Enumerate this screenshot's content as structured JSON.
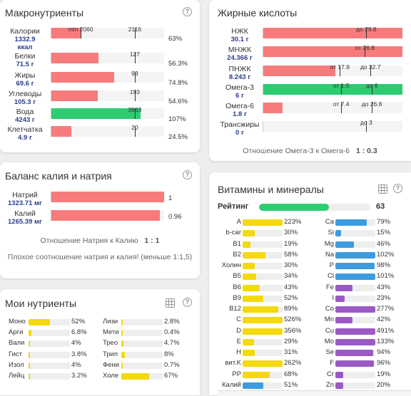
{
  "macro": {
    "title": "Макронутриенты",
    "rows": [
      {
        "name": "Калории",
        "value": "1332.9 ккал",
        "fill": 0.26,
        "color": "#f77b7b",
        "marks": [
          {
            "t": "min 2060",
            "p": 0.26
          },
          {
            "t": "2116",
            "p": 0.74
          }
        ],
        "pct": "63%"
      },
      {
        "name": "Белки",
        "value": "71.5 г",
        "fill": 0.42,
        "color": "#f77b7b",
        "marks": [
          {
            "t": "127",
            "p": 0.74
          }
        ],
        "pct": "56.3%"
      },
      {
        "name": "Жиры",
        "value": "69.6 г",
        "fill": 0.56,
        "color": "#f77b7b",
        "marks": [
          {
            "t": "93",
            "p": 0.74
          }
        ],
        "pct": "74.8%"
      },
      {
        "name": "Углеводы",
        "value": "105.3 г",
        "fill": 0.41,
        "color": "#f77b7b",
        "marks": [
          {
            "t": "193",
            "p": 0.74
          }
        ],
        "pct": "54.6%"
      },
      {
        "name": "Вода",
        "value": "4243 г",
        "fill": 0.79,
        "color": "#2ecc71",
        "marks": [
          {
            "t": "3963",
            "p": 0.74
          }
        ],
        "pct": "107%"
      },
      {
        "name": "Клетчатка",
        "value": "4.9 г",
        "fill": 0.18,
        "color": "#f77b7b",
        "marks": [
          {
            "t": "20",
            "p": 0.74
          }
        ],
        "pct": "24.5%"
      }
    ]
  },
  "fat": {
    "title": "Жирные кислоты",
    "rows": [
      {
        "name": "НЖК",
        "value": "30.1 г",
        "fill": 1.0,
        "color": "#f77b7b",
        "marks": [
          {
            "t": "до 29.8",
            "p": 0.74
          }
        ]
      },
      {
        "name": "МНЖК",
        "value": "24.366 г",
        "fill": 1.0,
        "color": "#f77b7b",
        "marks": [
          {
            "t": "от 26.8",
            "p": 0.73
          }
        ]
      },
      {
        "name": "ПНЖК",
        "value": "8.243 г",
        "fill": 0.52,
        "color": "#f77b7b",
        "marks": [
          {
            "t": "от 17.9",
            "p": 0.55
          },
          {
            "t": "до 32.7",
            "p": 0.77
          }
        ]
      },
      {
        "name": "Омега-3",
        "value": "6 г",
        "fill": 1.0,
        "color": "#2ecc71",
        "marks": [
          {
            "t": "от 1.5",
            "p": 0.56
          },
          {
            "t": "до 6",
            "p": 0.78
          }
        ]
      },
      {
        "name": "Омега-6",
        "value": "1.8 г",
        "fill": 0.14,
        "color": "#f77b7b",
        "marks": [
          {
            "t": "от 7.4",
            "p": 0.56
          },
          {
            "t": "до 26.8",
            "p": 0.78
          }
        ]
      },
      {
        "name": "Трансжиры",
        "value": "0 г",
        "fill": 0.0,
        "color": "#f77b7b",
        "marks": [
          {
            "t": "до 3",
            "p": 0.74
          }
        ]
      }
    ],
    "ratio_label": "Отношение Омега-3 к Омега-6",
    "ratio_value": "1 : 0.3"
  },
  "balance": {
    "title": "Баланс калия и натрия",
    "rows": [
      {
        "name": "Натрий",
        "value": "1323.71 мг",
        "fill": 1.0,
        "num": "1"
      },
      {
        "name": "Калий",
        "value": "1265.39 мг",
        "fill": 0.96,
        "num": "0.96"
      }
    ],
    "ratio_label": "Отношение Натрия к Калию",
    "ratio_value": "1 : 1",
    "warning": "Плохое соотношение натрия и калия! (меньше 1:1,5)"
  },
  "my": {
    "title": "Мои нутриенты",
    "left": [
      {
        "name": "Моно",
        "pct": "52%",
        "fill": 0.52
      },
      {
        "name": "Арги",
        "pct": "6.8%",
        "fill": 0.07
      },
      {
        "name": "Вали",
        "pct": "4%",
        "fill": 0.04
      },
      {
        "name": "Гист",
        "pct": "3.8%",
        "fill": 0.04
      },
      {
        "name": "Изол",
        "pct": "4%",
        "fill": 0.04
      },
      {
        "name": "Лейц",
        "pct": "3.2%",
        "fill": 0.03
      }
    ],
    "right": [
      {
        "name": "Лизи",
        "pct": "2.8%",
        "fill": 0.03
      },
      {
        "name": "Мети",
        "pct": "0.4%",
        "fill": 0.01
      },
      {
        "name": "Трео",
        "pct": "4.7%",
        "fill": 0.05
      },
      {
        "name": "Трип",
        "pct": "8%",
        "fill": 0.08
      },
      {
        "name": "Фени",
        "pct": "0.7%",
        "fill": 0.01
      },
      {
        "name": "Холе",
        "pct": "67%",
        "fill": 0.67
      }
    ]
  },
  "vit": {
    "title": "Витамины и минералы",
    "rating_label": "Рейтинг",
    "rating_value": "63",
    "rating_fill": 0.63,
    "left": [
      {
        "name": "A",
        "pct": "223%",
        "fill": 1.0
      },
      {
        "name": "b-car",
        "pct": "30%",
        "fill": 0.3
      },
      {
        "name": "B1",
        "pct": "19%",
        "fill": 0.19
      },
      {
        "name": "B2",
        "pct": "58%",
        "fill": 0.58
      },
      {
        "name": "Холин",
        "pct": "30%",
        "fill": 0.3
      },
      {
        "name": "B5",
        "pct": "34%",
        "fill": 0.34
      },
      {
        "name": "B6",
        "pct": "43%",
        "fill": 0.43
      },
      {
        "name": "B9",
        "pct": "52%",
        "fill": 0.52
      },
      {
        "name": "B12",
        "pct": "89%",
        "fill": 0.89
      },
      {
        "name": "C",
        "pct": "526%",
        "fill": 1.0
      },
      {
        "name": "D",
        "pct": "356%",
        "fill": 1.0
      },
      {
        "name": "E",
        "pct": "29%",
        "fill": 0.29
      },
      {
        "name": "H",
        "pct": "31%",
        "fill": 0.31
      },
      {
        "name": "вит.K",
        "pct": "262%",
        "fill": 1.0
      },
      {
        "name": "PP",
        "pct": "68%",
        "fill": 0.68
      },
      {
        "name": "Калий",
        "pct": "51%",
        "fill": 0.51
      }
    ],
    "right": [
      {
        "name": "Ca",
        "pct": "79%",
        "fill": 0.79
      },
      {
        "name": "Si",
        "pct": "15%",
        "fill": 0.15
      },
      {
        "name": "Mg",
        "pct": "46%",
        "fill": 0.46
      },
      {
        "name": "Na",
        "pct": "102%",
        "fill": 1.0
      },
      {
        "name": "P",
        "pct": "98%",
        "fill": 0.98
      },
      {
        "name": "Cl",
        "pct": "101%",
        "fill": 1.0
      },
      {
        "name": "Fe",
        "pct": "43%",
        "fill": 0.43
      },
      {
        "name": "I",
        "pct": "23%",
        "fill": 0.23
      },
      {
        "name": "Co",
        "pct": "277%",
        "fill": 1.0
      },
      {
        "name": "Mn",
        "pct": "42%",
        "fill": 0.42
      },
      {
        "name": "Cu",
        "pct": "491%",
        "fill": 1.0
      },
      {
        "name": "Mo",
        "pct": "133%",
        "fill": 1.0
      },
      {
        "name": "Se",
        "pct": "94%",
        "fill": 0.94
      },
      {
        "name": "F",
        "pct": "96%",
        "fill": 0.96
      },
      {
        "name": "Cr",
        "pct": "19%",
        "fill": 0.19
      },
      {
        "name": "Zn",
        "pct": "20%",
        "fill": 0.2
      }
    ]
  },
  "colors": {
    "red": "#f77b7b",
    "green": "#2ecc71",
    "yellow": "#f4d90c",
    "blue": "#3d9be0",
    "purple": "#9b59c5"
  },
  "icons": {
    "help": "question-circle-icon",
    "table": "table-grid-icon"
  }
}
